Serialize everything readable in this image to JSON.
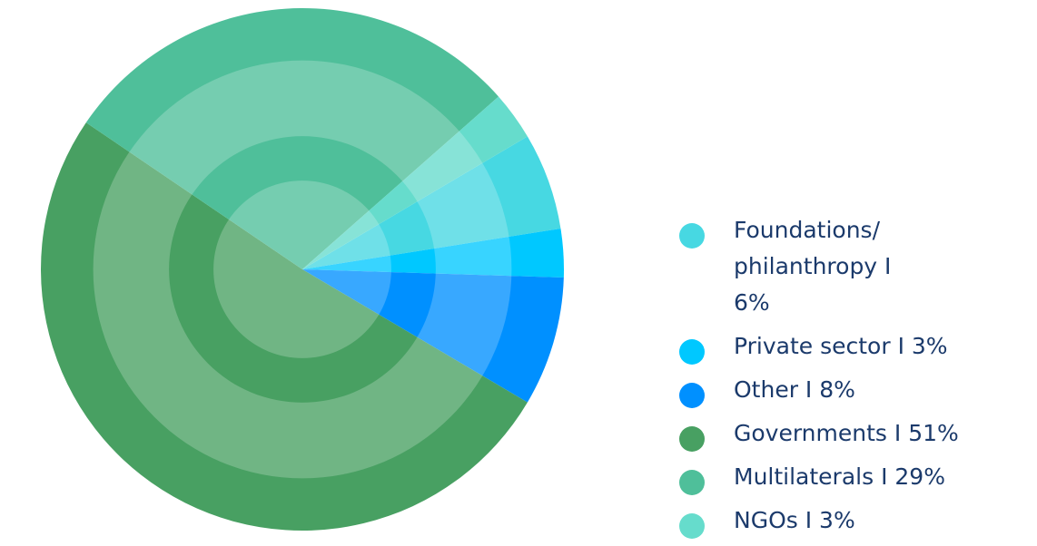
{
  "chart_data": {
    "type": "pie",
    "categories": [
      "Foundations/ philanthropy I 6%",
      "Private sector I 3%",
      "Other I 8%",
      "Governments I 51%",
      "Multilaterals I 29%",
      "NGOs I 3%"
    ],
    "values": [
      6,
      3,
      8,
      51,
      29,
      3
    ],
    "colors": [
      "#47d8e2",
      "#00c8ff",
      "#0090ff",
      "#48a062",
      "#4fbf9a",
      "#66dccc"
    ],
    "legend": "right"
  }
}
